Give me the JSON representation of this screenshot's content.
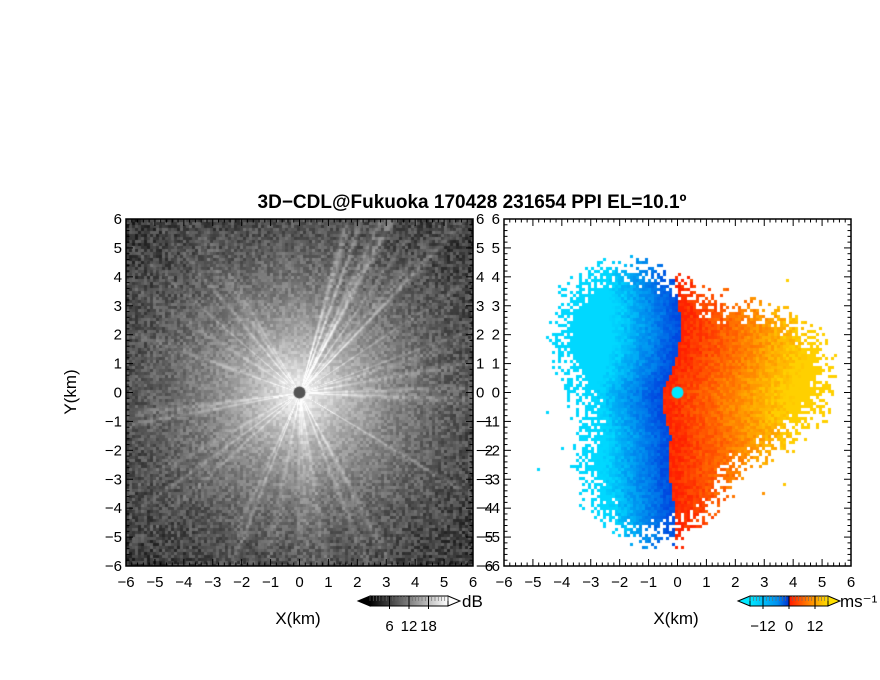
{
  "chart_data": [
    {
      "type": "heatmap",
      "title": "3D−CDL@Fukuoka 170428 231654 PPI EL=10.1º",
      "panel": "reflectivity",
      "xlabel": "X(km)",
      "ylabel": "Y(km)",
      "xlim": [
        -6,
        6
      ],
      "ylim": [
        -6,
        6
      ],
      "xticks": [
        "−6",
        "−5",
        "−4",
        "−3",
        "−2",
        "−1",
        "0",
        "1",
        "2",
        "3",
        "4",
        "5",
        "6"
      ],
      "yticks": [
        "−6",
        "−5",
        "−4",
        "−3",
        "−2",
        "−1",
        "0",
        "1",
        "2",
        "3",
        "4",
        "5",
        "6"
      ],
      "colorbar": {
        "unit": "dB",
        "ticks": [
          "6",
          "12",
          "18"
        ],
        "tick_values": [
          6,
          12,
          18
        ],
        "range": [
          0,
          24
        ],
        "colormap": "gray"
      },
      "description_values": {
        "center": [
          0,
          0
        ],
        "max_dB_near_center": 20,
        "min_dB_at_edges": 3
      }
    },
    {
      "type": "heatmap",
      "panel": "doppler_velocity",
      "xlabel": "X(km)",
      "ylabel": "",
      "xlim": [
        -6,
        6
      ],
      "ylim": [
        -6,
        6
      ],
      "xticks": [
        "−6",
        "−5",
        "−4",
        "−3",
        "−2",
        "−1",
        "0",
        "1",
        "2",
        "3",
        "4",
        "5",
        "6"
      ],
      "yticks": [
        "−6",
        "−5",
        "−4",
        "−3",
        "−2",
        "−1",
        "0",
        "1",
        "2",
        "3",
        "4",
        "5",
        "6"
      ],
      "colorbar": {
        "unit": "ms⁻¹",
        "ticks": [
          "−12",
          "0",
          "12"
        ],
        "tick_values": [
          -12,
          0,
          12
        ],
        "range": [
          -18,
          18
        ],
        "colormap": "blue-cyan-red-orange-yellow"
      },
      "description_values": {
        "negative_side": "west",
        "positive_side": "east",
        "data_extent_km": 5.5
      }
    }
  ],
  "colors": {
    "neg_far": "#00d8ff",
    "neg_near": "#0048e0",
    "pos_near": "#ff2000",
    "pos_far": "#ffd000",
    "missing": "#ffffff"
  }
}
